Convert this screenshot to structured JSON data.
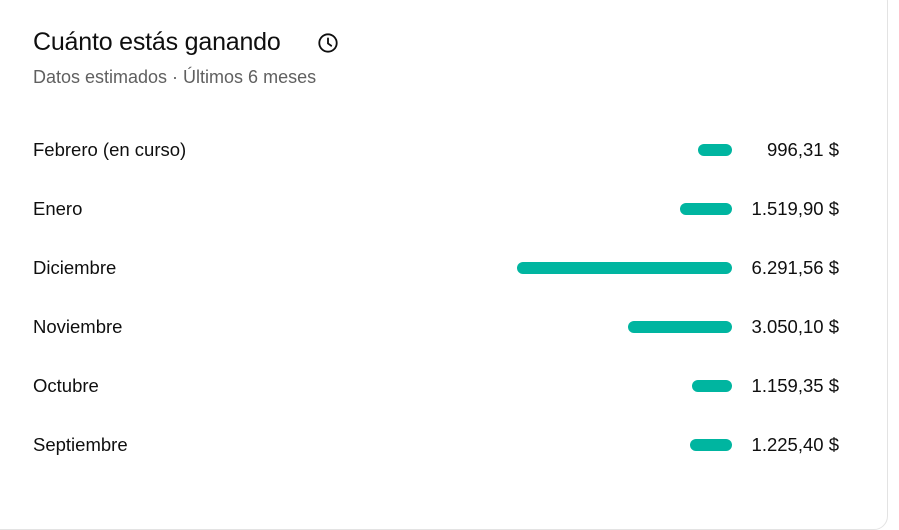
{
  "header": {
    "title": "Cuánto estás ganando",
    "info_icon": "clock-icon",
    "subtitle": "Datos estimados · Últimos 6 meses"
  },
  "colors": {
    "bar": "#00b5a0"
  },
  "chart_data": {
    "type": "bar",
    "orientation": "horizontal",
    "categories": [
      "Febrero (en curso)",
      "Enero",
      "Diciembre",
      "Noviembre",
      "Octubre",
      "Septiembre"
    ],
    "values": [
      996.31,
      1519.9,
      6291.56,
      3050.1,
      1159.35,
      1225.4
    ],
    "value_labels": [
      "996,31 $",
      "1.519,90 $",
      "6.291,56 $",
      "3.050,10 $",
      "1.159,35 $",
      "1.225,40 $"
    ]
  }
}
